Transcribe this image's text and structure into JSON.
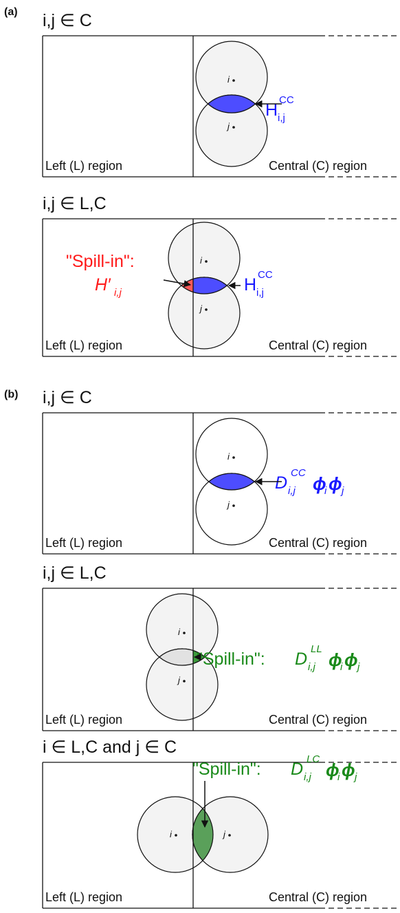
{
  "panel_a": {
    "label": "(a)",
    "diagrams": [
      {
        "title": "i,j ∈ C",
        "left_region": "Left (L) region",
        "central_region": "Central (C) region",
        "point_i": "i",
        "point_j": "j",
        "term": {
          "base": "H",
          "sub": "i,j",
          "sup": "CC"
        }
      },
      {
        "title": "i,j ∈ L,C",
        "left_region": "Left (L) region",
        "central_region": "Central (C) region",
        "point_i": "i",
        "point_j": "j",
        "spill_in": "\"Spill-in\":",
        "spill_term": {
          "base": "H′",
          "sub": "i,j"
        },
        "term": {
          "base": "H",
          "sub": "i,j",
          "sup": "CC"
        }
      }
    ]
  },
  "panel_b": {
    "label": "(b)",
    "diagrams": [
      {
        "title": "i,j ∈ C",
        "left_region": "Left (L) region",
        "central_region": "Central (C) region",
        "point_i": "i",
        "point_j": "j",
        "term": {
          "base": "D",
          "sub": "i,j",
          "sup": "CC",
          "factors": [
            {
              "base": "ϕ",
              "sub": "i"
            },
            {
              "base": "ϕ",
              "sub": "j"
            }
          ]
        }
      },
      {
        "title": "i,j ∈ L,C",
        "left_region": "Left (L) region",
        "central_region": "Central (C) region",
        "point_i": "i",
        "point_j": "j",
        "spill_in": "\"Spill-in\":",
        "term": {
          "base": "D",
          "sub": "i,j",
          "sup": "LL",
          "factors": [
            {
              "base": "ϕ",
              "sub": "i"
            },
            {
              "base": "ϕ",
              "sub": "j"
            }
          ]
        }
      },
      {
        "title": "i ∈ L,C and j ∈ C",
        "left_region": "Left (L) region",
        "central_region": "Central (C) region",
        "point_i": "i",
        "point_j": "j",
        "spill_in": "\"Spill-in\":",
        "term": {
          "base": "D",
          "sub": "i,j",
          "sup": "LC",
          "factors": [
            {
              "base": "ϕ",
              "sub": "i"
            },
            {
              "base": "ϕ",
              "sub": "j"
            }
          ]
        }
      }
    ]
  }
}
